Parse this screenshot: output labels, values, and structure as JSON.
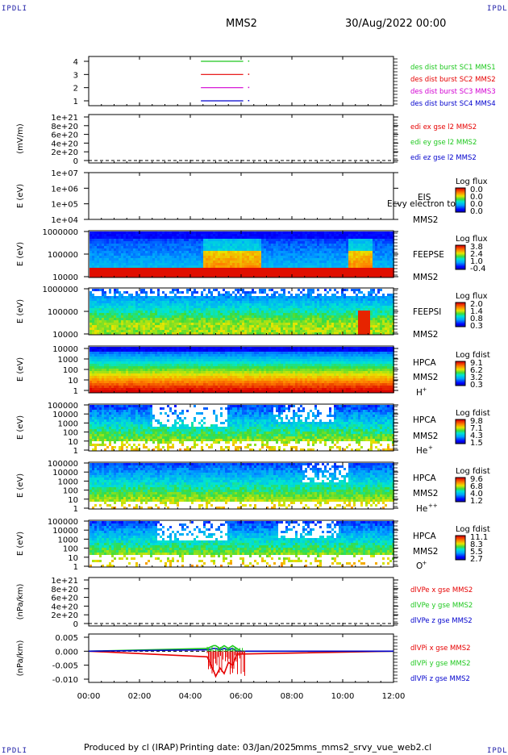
{
  "header": {
    "corner_text": "IPDLI",
    "spacecraft": "MMS2",
    "datetime": "30/Aug/2022 00:00"
  },
  "footer": {
    "produced_by": "Produced by cl (IRAP)",
    "printing_date": "Printing date: 03/Jan/2025",
    "filename": "mms_mms2_srvy_vue_web2.cl"
  },
  "colors": {
    "c1": "#1ec81e",
    "c2": "#e60000",
    "c3": "#d200d2",
    "c4": "#0000cd",
    "axis": "#000000"
  },
  "chart_data": [
    {
      "type": "line",
      "id": "burst",
      "y_ticks": [
        "1",
        "2",
        "3",
        "4"
      ],
      "series": [
        {
          "name": "des dist burst SC1 MMS1",
          "y": 4,
          "x_start": "04:25",
          "x_end": "06:05"
        },
        {
          "name": "des dist burst SC2 MMS2",
          "y": 3,
          "x_start": "04:25",
          "x_end": "06:05"
        },
        {
          "name": "des dist burst SC3 MMS3",
          "y": 2,
          "x_start": "04:25",
          "x_end": "06:05"
        },
        {
          "name": "des dist burst SC4 MMS4",
          "y": 1,
          "x_start": "04:25",
          "x_end": "06:05"
        }
      ]
    },
    {
      "type": "line",
      "id": "edi",
      "ylabel": "(mV/m)",
      "y_ticks": [
        "1e+21",
        "8e+20",
        "6e+20",
        "4e+20",
        "2e+20",
        "0"
      ],
      "series": [
        {
          "name": "edi ex gse l2 MMS2",
          "values": []
        },
        {
          "name": "edi ey gse l2 MMS2",
          "values": []
        },
        {
          "name": "edi ez gse l2 MMS2",
          "values": []
        }
      ]
    },
    {
      "type": "heatmap",
      "id": "eis",
      "ylabel": "E (eV)",
      "y_ticks": [
        "1e+07",
        "1e+06",
        "1e+05",
        "1e+04"
      ],
      "instrument": "EIS",
      "sc": "MMS2",
      "overlay_text": "Ecvy electron to",
      "colorbar": {
        "title": "Log flux",
        "ticks": [
          "0.0",
          "0.0",
          "0.0",
          "0.0"
        ]
      }
    },
    {
      "type": "heatmap",
      "id": "feepse",
      "ylabel": "E (eV)",
      "y_ticks": [
        "1000000",
        "100000",
        "10000"
      ],
      "instrument": "FEEPSE",
      "sc": "MMS2",
      "colorbar": {
        "title": "Log flux",
        "ticks": [
          "3.8",
          "2.4",
          "1.0",
          "-0.4"
        ]
      }
    },
    {
      "type": "heatmap",
      "id": "feepsi",
      "ylabel": "E (eV)",
      "y_ticks": [
        "1000000",
        "100000",
        "10000"
      ],
      "instrument": "FEEPSI",
      "sc": "MMS2",
      "colorbar": {
        "title": "Log flux",
        "ticks": [
          "2.0",
          "1.4",
          "0.8",
          "0.3"
        ]
      }
    },
    {
      "type": "heatmap",
      "id": "hpca_h",
      "ylabel": "E (eV)",
      "y_ticks": [
        "10000",
        "1000",
        "100",
        "10",
        "1"
      ],
      "instrument": "HPCA",
      "sc": "MMS2",
      "species": "H",
      "charge": "+",
      "colorbar": {
        "title": "Log fdist",
        "ticks": [
          "9.1",
          "6.2",
          "3.2",
          "0.3"
        ]
      }
    },
    {
      "type": "heatmap",
      "id": "hpca_he",
      "ylabel": "E (eV)",
      "y_ticks": [
        "100000",
        "10000",
        "1000",
        "100",
        "10",
        "1"
      ],
      "instrument": "HPCA",
      "sc": "MMS2",
      "species": "He",
      "charge": "+",
      "colorbar": {
        "title": "Log fdist",
        "ticks": [
          "9.8",
          "7.1",
          "4.3",
          "1.5"
        ]
      }
    },
    {
      "type": "heatmap",
      "id": "hpca_he2",
      "ylabel": "E (eV)",
      "y_ticks": [
        "100000",
        "10000",
        "1000",
        "100",
        "10",
        "1"
      ],
      "instrument": "HPCA",
      "sc": "MMS2",
      "species": "He",
      "charge": "++",
      "colorbar": {
        "title": "Log fdist",
        "ticks": [
          "9.6",
          "6.8",
          "4.0",
          "1.2"
        ]
      }
    },
    {
      "type": "heatmap",
      "id": "hpca_o",
      "ylabel": "E (eV)",
      "y_ticks": [
        "100000",
        "10000",
        "1000",
        "100",
        "10",
        "1"
      ],
      "instrument": "HPCA",
      "sc": "MMS2",
      "species": "O",
      "charge": "+",
      "colorbar": {
        "title": "Log fdist",
        "ticks": [
          "11.1",
          "8.3",
          "5.5",
          "2.7"
        ]
      }
    },
    {
      "type": "line",
      "id": "dlvpe",
      "ylabel": "(nPa/km)",
      "y_ticks": [
        "1e+21",
        "8e+20",
        "6e+20",
        "4e+20",
        "2e+20",
        "0"
      ],
      "series": [
        {
          "name": "dlVPe x gse MMS2",
          "values": []
        },
        {
          "name": "dlVPe y gse MMS2",
          "values": []
        },
        {
          "name": "dlVPe z gse MMS2",
          "values": []
        }
      ]
    },
    {
      "type": "line",
      "id": "dlvpi",
      "ylabel": "(nPa/km)",
      "y_ticks": [
        "0.005",
        "0.000",
        "-0.005",
        "-0.010"
      ],
      "ylim": [
        -0.01,
        0.005
      ],
      "series": [
        {
          "name": "dlVPi x gse MMS2",
          "x": [
            "00:00",
            "04:40",
            "04:55",
            "05:00",
            "05:10",
            "05:20",
            "05:30",
            "05:40",
            "05:50",
            "06:00",
            "12:00"
          ],
          "values": [
            0.0,
            -0.002,
            -0.007,
            -0.009,
            -0.006,
            -0.008,
            -0.004,
            -0.005,
            -0.001,
            -0.001,
            0.0
          ]
        },
        {
          "name": "dlVPi y gse MMS2",
          "x": [
            "00:00",
            "04:40",
            "04:55",
            "05:00",
            "05:10",
            "05:20",
            "05:30",
            "05:40",
            "05:50",
            "06:00",
            "12:00"
          ],
          "values": [
            0.0,
            0.001,
            0.002,
            0.002,
            0.001,
            0.002,
            0.001,
            0.002,
            0.001,
            0.0,
            0.0
          ]
        },
        {
          "name": "dlVPi z gse MMS2",
          "x": [
            "00:00",
            "04:40",
            "04:55",
            "05:00",
            "05:10",
            "05:20",
            "05:30",
            "05:40",
            "05:50",
            "06:00",
            "12:00"
          ],
          "values": [
            0.0,
            0.0005,
            0.001,
            0.001,
            0.0005,
            0.001,
            0.0005,
            0.001,
            0.0,
            0.0,
            0.0
          ]
        }
      ]
    }
  ],
  "time_axis": {
    "ticks": [
      "00:00",
      "02:00",
      "04:00",
      "06:00",
      "08:00",
      "10:00",
      "12:00"
    ]
  }
}
